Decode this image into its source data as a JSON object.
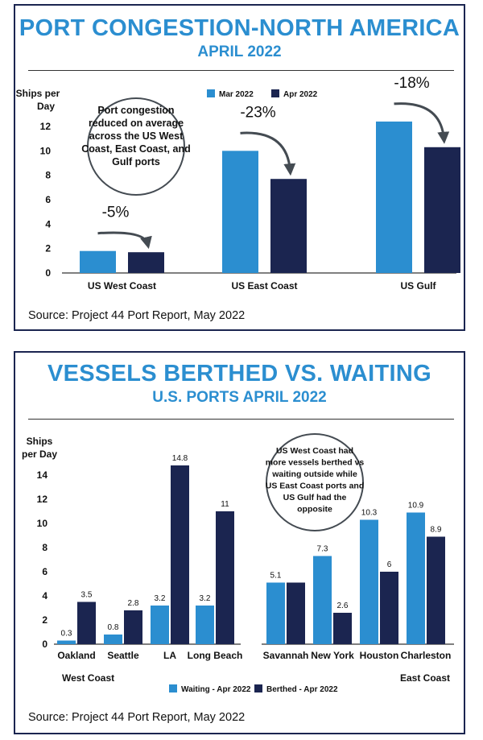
{
  "colors": {
    "mar": "#2b8ed0",
    "apr": "#1b2550",
    "title": "#2b8ed0",
    "border": "#1b2550",
    "arrow": "#444b52"
  },
  "chart1": {
    "title": "PORT CONGESTION-NORTH AMERICA",
    "subtitle": "APRIL 2022",
    "ylabel": [
      "Ships per",
      "Day"
    ],
    "source": "Source: Project 44 Port Report, May 2022",
    "annotation": [
      "Port congestion",
      "reduced on average",
      "across the US West",
      "Coast, East Coast, and",
      "Gulf ports"
    ]
  },
  "chart2": {
    "title": "VESSELS BERTHED VS. WAITING",
    "subtitle": "U.S. PORTS APRIL 2022",
    "ylabel": [
      "Ships",
      "per Day"
    ],
    "source": "Source: Project 44 Port Report, May 2022",
    "annotation": [
      "US West Coast had",
      "more vessels berthed vs",
      "waiting outside while",
      "US East Coast ports and",
      "US Gulf had the",
      "opposite"
    ],
    "group_labels": [
      "West Coast",
      "East Coast"
    ]
  },
  "chart_data": [
    {
      "type": "bar",
      "title": "PORT CONGESTION-NORTH AMERICA",
      "subtitle": "APRIL 2022",
      "ylabel": "Ships per Day",
      "ylim": [
        0,
        12
      ],
      "yticks": [
        0,
        2,
        4,
        6,
        8,
        10,
        12
      ],
      "categories": [
        "US West Coast",
        "US East Coast",
        "US Gulf"
      ],
      "series": [
        {
          "name": "Mar 2022",
          "values": [
            1.8,
            10,
            12.4
          ]
        },
        {
          "name": "Apr 2022",
          "values": [
            1.7,
            7.7,
            10.3
          ]
        }
      ],
      "changes": [
        "-5%",
        "-23%",
        "-18%"
      ],
      "legend": "top-center",
      "grid": false
    },
    {
      "type": "bar",
      "title": "VESSELS BERTHED VS. WAITING",
      "subtitle": "U.S. PORTS APRIL 2022",
      "ylabel": "Ships per Day",
      "ylim": [
        0,
        14
      ],
      "yticks": [
        0,
        2,
        4,
        6,
        8,
        10,
        12,
        14
      ],
      "categories": [
        "Oakland",
        "Seattle",
        "LA",
        "Long Beach",
        "Savannah",
        "New York",
        "Houston",
        "Charleston"
      ],
      "series": [
        {
          "name": "Waiting - Apr 2022",
          "values": [
            0.3,
            0.8,
            3.2,
            3.2,
            5.1,
            7.3,
            10.3,
            10.9
          ]
        },
        {
          "name": "Berthed - Apr 2022",
          "values": [
            3.5,
            2.8,
            14.8,
            11,
            5.1,
            2.6,
            6,
            8.9
          ]
        }
      ],
      "data_labels": {
        "waiting": [
          "0.3",
          "0.8",
          "3.2",
          "3.2",
          "5.1",
          "7.3",
          "10.3",
          "10.9"
        ],
        "berthed": [
          "3.5",
          "2.8",
          "14.8",
          "11",
          "",
          "2.6",
          "6",
          "8.9"
        ]
      },
      "legend": "bottom-center",
      "grid": false
    }
  ]
}
